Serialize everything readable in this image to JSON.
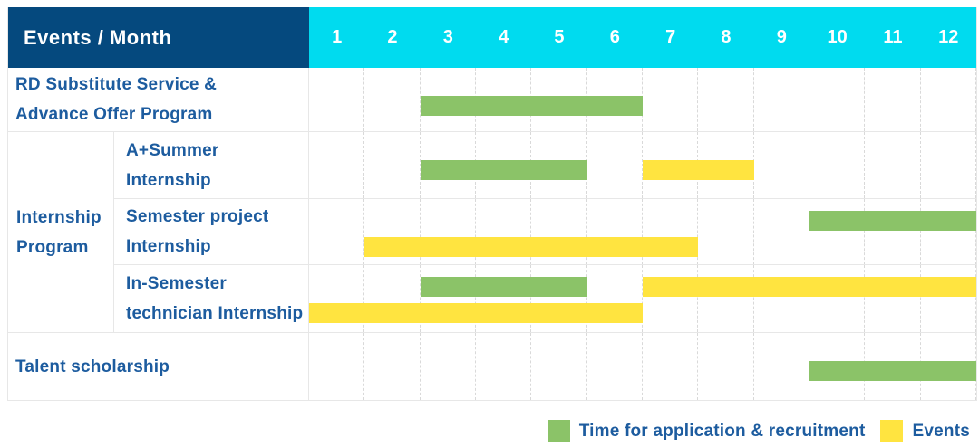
{
  "header": {
    "label": "Events / Month",
    "months": [
      "1",
      "2",
      "3",
      "4",
      "5",
      "6",
      "7",
      "8",
      "9",
      "10",
      "11",
      "12"
    ]
  },
  "group_label": "Internship Program",
  "rows": [
    {
      "id": "rd-substitute-service",
      "label_lines": [
        "RD Substitute Service &",
        "Advance Offer Program"
      ],
      "group": null,
      "bars": [
        {
          "color": "green",
          "start": 3,
          "end": 6,
          "track": "single"
        }
      ]
    },
    {
      "id": "a-summer-internship",
      "label_lines": [
        "A+Summer",
        "Internship"
      ],
      "group": "Internship Program",
      "bars": [
        {
          "color": "green",
          "start": 3,
          "end": 5,
          "track": "single"
        },
        {
          "color": "yellow",
          "start": 7,
          "end": 8,
          "track": "single"
        }
      ]
    },
    {
      "id": "semester-project-internship",
      "label_lines": [
        "Semester project",
        "Internship"
      ],
      "group": "Internship Program",
      "bars": [
        {
          "color": "green",
          "start": 10,
          "end": 12,
          "track": "upper"
        },
        {
          "color": "yellow",
          "start": 2,
          "end": 7,
          "track": "lower"
        }
      ]
    },
    {
      "id": "in-semester-technician-internship",
      "label_lines": [
        "In-Semester",
        "technician Internship"
      ],
      "group": "Internship Program",
      "bars": [
        {
          "color": "green",
          "start": 3,
          "end": 5,
          "track": "upper"
        },
        {
          "color": "yellow",
          "start": 7,
          "end": 12,
          "track": "upper"
        },
        {
          "color": "yellow",
          "start": 1,
          "end": 6,
          "track": "lower"
        }
      ]
    },
    {
      "id": "talent-scholarship",
      "label_lines": [
        "Talent scholarship"
      ],
      "group": null,
      "bars": [
        {
          "color": "green",
          "start": 10,
          "end": 12,
          "track": "single"
        }
      ]
    }
  ],
  "legend": {
    "items": [
      {
        "key": "green",
        "label": "Time for application & recruitment"
      },
      {
        "key": "yellow",
        "label": "Events"
      }
    ]
  },
  "colors": {
    "header_bg": "#05497E",
    "months_bg": "#00DBEF",
    "green": "#8BC368",
    "yellow": "#FFE440",
    "text_blue": "#1D5C9F"
  },
  "chart_data": {
    "type": "bar",
    "subtype": "gantt-schedule",
    "title": "Events / Month",
    "x": {
      "label": "Month",
      "ticks": [
        1,
        2,
        3,
        4,
        5,
        6,
        7,
        8,
        9,
        10,
        11,
        12
      ],
      "range": [
        1,
        12
      ]
    },
    "grid": true,
    "legend_entries": [
      "Time for application & recruitment",
      "Events"
    ],
    "legend_position": "bottom-right",
    "series_colors": {
      "Time for application & recruitment": "#8BC368",
      "Events": "#FFE440"
    },
    "rows": [
      {
        "event": "RD Substitute Service & Advance Offer Program",
        "group": null,
        "spans": [
          {
            "series": "Time for application & recruitment",
            "start_month": 3,
            "end_month": 6
          }
        ]
      },
      {
        "event": "A+Summer Internship",
        "group": "Internship Program",
        "spans": [
          {
            "series": "Time for application & recruitment",
            "start_month": 3,
            "end_month": 5
          },
          {
            "series": "Events",
            "start_month": 7,
            "end_month": 8
          }
        ]
      },
      {
        "event": "Semester project Internship",
        "group": "Internship Program",
        "spans": [
          {
            "series": "Time for application & recruitment",
            "start_month": 10,
            "end_month": 12
          },
          {
            "series": "Events",
            "start_month": 2,
            "end_month": 7
          }
        ]
      },
      {
        "event": "In-Semester technician Internship",
        "group": "Internship Program",
        "spans": [
          {
            "series": "Time for application & recruitment",
            "start_month": 3,
            "end_month": 5
          },
          {
            "series": "Events",
            "start_month": 1,
            "end_month": 6
          },
          {
            "series": "Events",
            "start_month": 7,
            "end_month": 12
          }
        ]
      },
      {
        "event": "Talent scholarship",
        "group": null,
        "spans": [
          {
            "series": "Time for application & recruitment",
            "start_month": 10,
            "end_month": 12
          }
        ]
      }
    ]
  }
}
